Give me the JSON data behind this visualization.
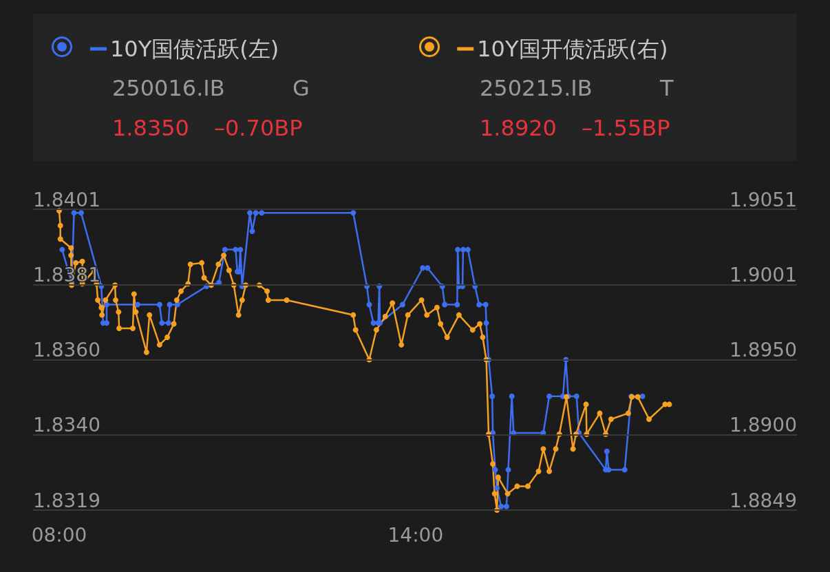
{
  "chart_data": {
    "type": "line",
    "legend": "top left",
    "grid": "y",
    "marker": "circle",
    "line_style": "solid",
    "annotations": [
      "250016.IB",
      "G",
      "1.8350",
      "–0.70BP",
      "250215.IB",
      "T",
      "1.8920",
      "–1.55BP"
    ],
    "xlim": [
      7.56,
      20.42
    ],
    "xticks": [
      {
        "value": 8,
        "label": "08:00"
      },
      {
        "value": 14,
        "label": "14:00"
      }
    ],
    "ylim": [
      1.8319,
      1.8401
    ],
    "yticks": [
      1.8319,
      {
        "value": 1.83395,
        "label": "1.8340"
      },
      {
        "value": 1.836,
        "label": "1.8360"
      },
      {
        "value": 1.83805,
        "label": "1.8381"
      },
      1.8401
    ],
    "y2lim": [
      1.8849,
      1.9051
    ],
    "y2ticks": [
      1.8849,
      {
        "value": 1.88995,
        "label": "1.8900"
      },
      {
        "value": 1.895,
        "label": "1.8950"
      },
      {
        "value": 1.90005,
        "label": "1.9001"
      },
      1.9051
    ],
    "series": [
      {
        "name": "10Y国债活跃(左)",
        "color": "#3d6ef0",
        "x": [
          8.05,
          8.21,
          8.25,
          8.37,
          8.71,
          8.74,
          8.8,
          8.8,
          9.32,
          9.69,
          9.73,
          9.84,
          9.86,
          9.99,
          10.48,
          10.69,
          10.79,
          10.97,
          11.0,
          11.03,
          11.05,
          11.08,
          11.21,
          11.25,
          11.31,
          11.41,
          12.95,
          13.18,
          13.22,
          13.29,
          13.37,
          13.39,
          13.4,
          13.78,
          14.12,
          14.2,
          14.45,
          14.49,
          14.7,
          14.71,
          14.73,
          14.79,
          14.8,
          14.88,
          15.0,
          15.07,
          15.18,
          15.19,
          15.23,
          15.29,
          15.3,
          15.34,
          15.37,
          15.44,
          15.53,
          15.56,
          15.62,
          15.65,
          16.15,
          16.25,
          16.48,
          16.53,
          16.57,
          16.71,
          16.75,
          17.2,
          17.22,
          17.25,
          17.52,
          17.63,
          17.82
        ],
        "values": [
          1.839,
          1.8381,
          1.84,
          1.84,
          1.838,
          1.837,
          1.837,
          1.8375,
          1.8375,
          1.8375,
          1.837,
          1.837,
          1.8375,
          1.8375,
          1.838,
          1.8381,
          1.839,
          1.839,
          1.8384,
          1.8384,
          1.839,
          1.838,
          1.84,
          1.8395,
          1.84,
          1.84,
          1.84,
          1.838,
          1.8375,
          1.837,
          1.837,
          1.838,
          1.837,
          1.8375,
          1.8385,
          1.8385,
          1.838,
          1.8375,
          1.8375,
          1.839,
          1.838,
          1.838,
          1.839,
          1.839,
          1.838,
          1.8375,
          1.8375,
          1.837,
          1.836,
          1.835,
          1.834,
          1.833,
          1.8325,
          1.832,
          1.832,
          1.833,
          1.835,
          1.834,
          1.834,
          1.835,
          1.835,
          1.836,
          1.835,
          1.835,
          1.834,
          1.833,
          1.8335,
          1.833,
          1.833,
          1.835,
          1.835
        ]
      },
      {
        "name": "10Y国开债活跃(右)",
        "color": "#f5a023",
        "axis": "y2",
        "x": [
          8.0,
          8.02,
          8.02,
          8.2,
          8.2,
          8.21,
          8.28,
          8.39,
          8.39,
          8.59,
          8.63,
          8.65,
          8.71,
          8.72,
          8.78,
          8.94,
          8.95,
          9.0,
          9.01,
          9.24,
          9.26,
          9.29,
          9.47,
          9.52,
          9.69,
          9.82,
          9.93,
          9.98,
          10.05,
          10.17,
          10.21,
          10.4,
          10.44,
          10.56,
          10.68,
          10.77,
          10.86,
          10.94,
          11.02,
          11.08,
          11.14,
          11.37,
          11.5,
          11.52,
          11.83,
          12.95,
          12.99,
          13.22,
          13.34,
          13.49,
          13.61,
          13.76,
          13.87,
          14.1,
          14.19,
          14.36,
          14.42,
          14.53,
          14.73,
          14.96,
          15.08,
          15.13,
          15.19,
          15.23,
          15.3,
          15.33,
          15.37,
          15.39,
          15.55,
          15.71,
          15.89,
          16.07,
          16.15,
          16.25,
          16.36,
          16.42,
          16.54,
          16.65,
          16.7,
          16.87,
          16.88,
          17.1,
          17.2,
          17.29,
          17.58,
          17.64,
          17.74,
          17.93,
          18.2,
          18.27
        ],
        "values": [
          1.905,
          1.904,
          1.9031,
          1.9025,
          1.902,
          1.9,
          1.9015,
          1.9016,
          1.9001,
          1.901,
          1.9001,
          1.899,
          1.8985,
          1.898,
          1.899,
          1.9,
          1.899,
          1.8982,
          1.8971,
          1.8971,
          1.8994,
          1.8982,
          1.8955,
          1.898,
          1.896,
          1.8965,
          1.8974,
          1.899,
          1.8996,
          1.9001,
          1.9014,
          1.9015,
          1.9005,
          1.9,
          1.9014,
          1.902,
          1.901,
          1.9,
          1.898,
          1.899,
          1.9,
          1.9,
          1.8996,
          1.899,
          1.899,
          1.898,
          1.897,
          1.895,
          1.897,
          1.8979,
          1.8988,
          1.896,
          1.898,
          1.899,
          1.898,
          1.8985,
          1.8974,
          1.8965,
          1.898,
          1.897,
          1.8974,
          1.8965,
          1.895,
          1.89,
          1.888,
          1.886,
          1.8849,
          1.8871,
          1.886,
          1.8865,
          1.8865,
          1.8875,
          1.889,
          1.8875,
          1.889,
          1.89,
          1.8925,
          1.889,
          1.89,
          1.892,
          1.89,
          1.8914,
          1.89,
          1.891,
          1.8914,
          1.8925,
          1.8925,
          1.891,
          1.892,
          1.892
        ]
      }
    ]
  }
}
